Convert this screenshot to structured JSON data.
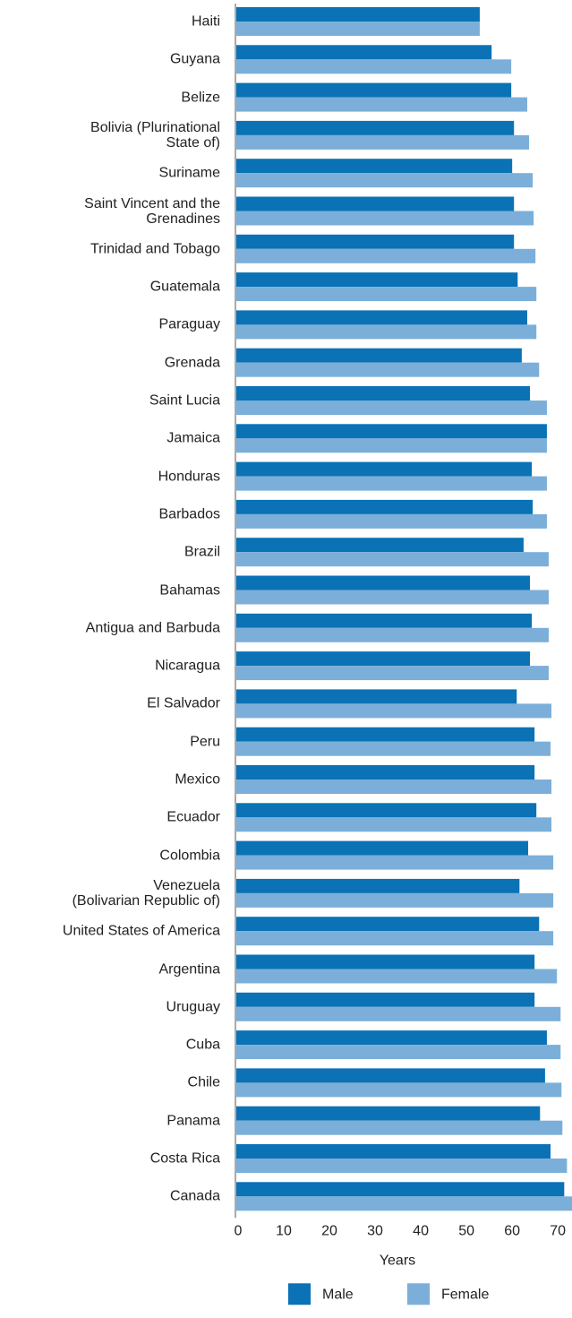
{
  "chart_data": {
    "type": "hbar",
    "categories": [
      "Haiti",
      "Guyana",
      "Belize",
      "Bolivia (Plurinational\nState of)",
      "Suriname",
      "Saint Vincent and the\nGrenadines",
      "Trinidad and Tobago",
      "Guatemala",
      "Paraguay",
      "Grenada",
      "Saint Lucia",
      "Jamaica",
      "Honduras",
      "Barbados",
      "Brazil",
      "Bahamas",
      "Antigua and Barbuda",
      "Nicaragua",
      "El Salvador",
      "Peru",
      "Mexico",
      "Ecuador",
      "Colombia",
      "Venezuela\n(Bolivarian Republic of)",
      "United States of America",
      "Argentina",
      "Uruguay",
      "Cuba",
      "Chile",
      "Panama",
      "Costa Rica",
      "Canada"
    ],
    "series": [
      {
        "name": "Male",
        "color": "#0a72b5",
        "values": [
          53.3,
          55.9,
          60.2,
          60.8,
          60.4,
          60.8,
          60.8,
          61.6,
          63.7,
          62.5,
          64.3,
          68.0,
          64.7,
          64.9,
          62.9,
          64.3,
          64.7,
          64.3,
          61.4,
          65.3,
          65.3,
          65.7,
          63.9,
          62.0,
          66.3,
          65.3,
          65.3,
          68.0,
          67.6,
          66.5,
          68.8,
          71.8
        ]
      },
      {
        "name": "Female",
        "color": "#7bafd9",
        "values": [
          53.3,
          60.2,
          63.7,
          64.1,
          64.9,
          65.1,
          65.5,
          65.7,
          65.7,
          66.3,
          68.0,
          68.0,
          68.0,
          68.0,
          68.4,
          68.4,
          68.4,
          68.4,
          69.0,
          68.8,
          69.0,
          69.0,
          69.4,
          69.4,
          69.4,
          70.2,
          71.0,
          71.0,
          71.2,
          71.4,
          72.4,
          73.5
        ]
      }
    ],
    "xlim": [
      0,
      73.5
    ],
    "xticks": [
      0,
      10,
      20,
      30,
      40,
      50,
      60,
      70
    ],
    "x_label": "Years",
    "legend": "bottom"
  }
}
